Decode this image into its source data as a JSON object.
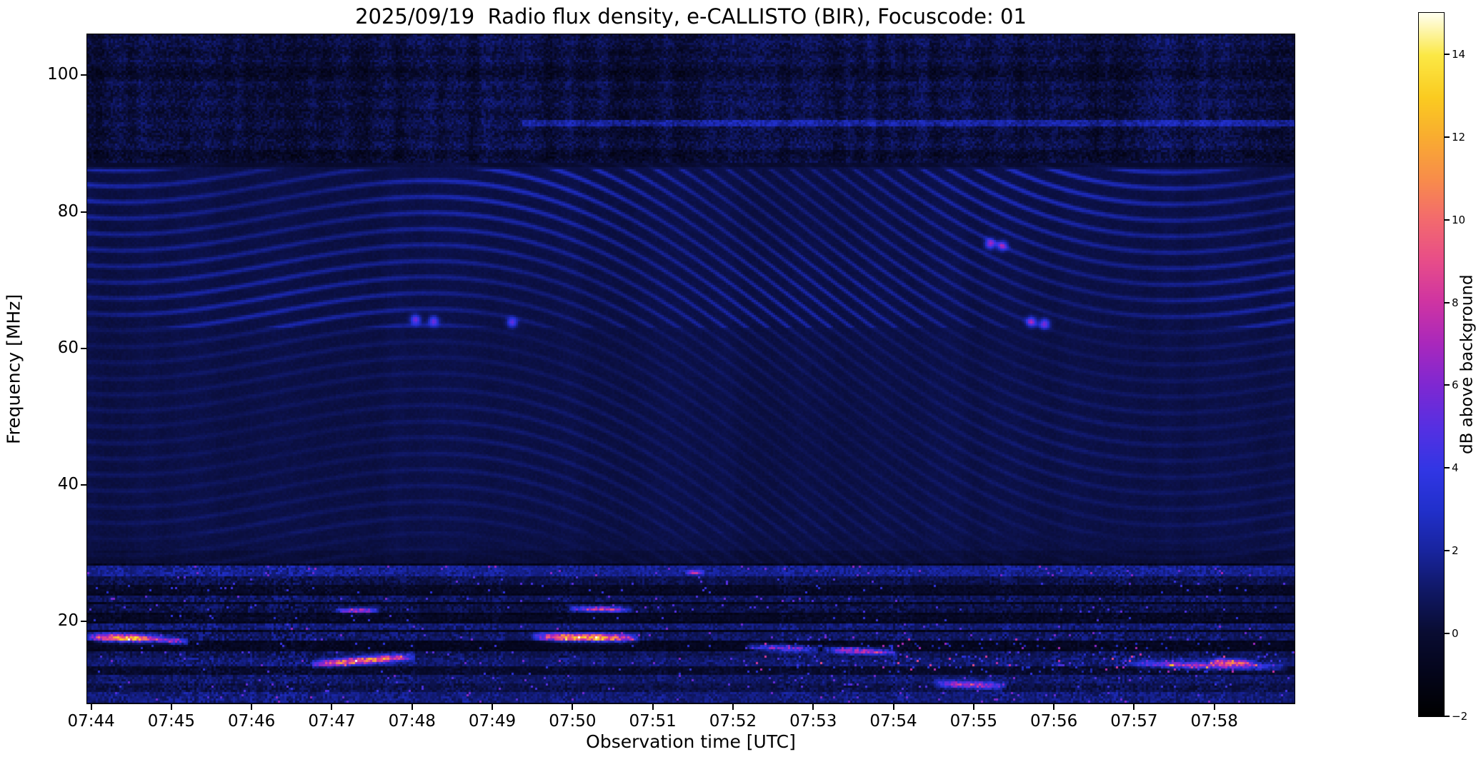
{
  "chart_data": {
    "type": "heatmap",
    "title": "2025/09/19  Radio flux density, e-CALLISTO (BIR), Focuscode: 01",
    "xlabel": "Observation time [UTC]",
    "ylabel": "Frequency [MHz]",
    "colorbar_label": "dB above background",
    "x_ticks": [
      {
        "m": 0,
        "label": "07:44"
      },
      {
        "m": 1,
        "label": "07:45"
      },
      {
        "m": 2,
        "label": "07:46"
      },
      {
        "m": 3,
        "label": "07:47"
      },
      {
        "m": 4,
        "label": "07:48"
      },
      {
        "m": 5,
        "label": "07:49"
      },
      {
        "m": 6,
        "label": "07:50"
      },
      {
        "m": 7,
        "label": "07:51"
      },
      {
        "m": 8,
        "label": "07:52"
      },
      {
        "m": 9,
        "label": "07:53"
      },
      {
        "m": 10,
        "label": "07:54"
      },
      {
        "m": 11,
        "label": "07:55"
      },
      {
        "m": 12,
        "label": "07:56"
      },
      {
        "m": 13,
        "label": "07:57"
      },
      {
        "m": 14,
        "label": "07:58"
      }
    ],
    "axis_time_span_seconds": 903,
    "y_ticks": [
      {
        "v": 100,
        "label": "100"
      },
      {
        "v": 80,
        "label": "80"
      },
      {
        "v": 60,
        "label": "60"
      },
      {
        "v": 40,
        "label": "40"
      },
      {
        "v": 20,
        "label": "20"
      }
    ],
    "freq_range": [
      8,
      106
    ],
    "value_range": [
      -2,
      15
    ],
    "colorbar_ticks": [
      {
        "v": -2,
        "label": "−2"
      },
      {
        "v": 0,
        "label": "0"
      },
      {
        "v": 2,
        "label": "2"
      },
      {
        "v": 4,
        "label": "4"
      },
      {
        "v": 6,
        "label": "6"
      },
      {
        "v": 8,
        "label": "8"
      },
      {
        "v": 10,
        "label": "10"
      },
      {
        "v": 12,
        "label": "12"
      },
      {
        "v": 14,
        "label": "14"
      }
    ],
    "colormap": {
      "name": "black-blue-violet-magenta-orange-yellow-white",
      "stops": [
        [
          0.0,
          "#000000"
        ],
        [
          0.06,
          "#04051a"
        ],
        [
          0.12,
          "#090c32"
        ],
        [
          0.18,
          "#101866"
        ],
        [
          0.235,
          "#18249e"
        ],
        [
          0.295,
          "#2130cc"
        ],
        [
          0.35,
          "#3136e4"
        ],
        [
          0.41,
          "#5530e2"
        ],
        [
          0.47,
          "#7e28d2"
        ],
        [
          0.53,
          "#a928bc"
        ],
        [
          0.59,
          "#cf34a2"
        ],
        [
          0.65,
          "#e84e88"
        ],
        [
          0.71,
          "#f36c6c"
        ],
        [
          0.765,
          "#f88d4a"
        ],
        [
          0.825,
          "#f9ad30"
        ],
        [
          0.88,
          "#facb20"
        ],
        [
          0.94,
          "#fbe845"
        ],
        [
          1.0,
          "#fffff0"
        ]
      ]
    },
    "regions": {
      "noisy_top_min_mhz": 87.3,
      "rfi_max_mhz": 28.6,
      "bright_line_mhz": 93.1,
      "bright_line_t_start": 0.36
    },
    "fringes": {
      "spacing_mhz": 2.35,
      "drift": 22,
      "wobble_amp": 5.0,
      "wobble_freq": 1.15,
      "wobble_phase": 0.07
    },
    "rfi_lanes": [
      {
        "f": 27.4,
        "w": 1.2,
        "b": 1.5,
        "s": 2.4
      },
      {
        "f": 26.0,
        "w": 1.0,
        "b": 0.3,
        "s": 2.0
      },
      {
        "f": 24.6,
        "w": 1.1,
        "b": -0.6,
        "s": 1.8
      },
      {
        "f": 23.3,
        "w": 1.0,
        "b": 0.6,
        "s": 2.2
      },
      {
        "f": 21.9,
        "w": 1.0,
        "b": 0.2,
        "s": 2.2
      },
      {
        "f": 20.5,
        "w": 1.0,
        "b": -0.6,
        "s": 1.8
      },
      {
        "f": 19.2,
        "w": 0.9,
        "b": 1.0,
        "s": 2.3
      },
      {
        "f": 17.8,
        "w": 1.0,
        "b": 0.7,
        "s": 2.4
      },
      {
        "f": 16.4,
        "w": 0.9,
        "b": -0.8,
        "s": 1.6
      },
      {
        "f": 15.2,
        "w": 0.9,
        "b": 0.5,
        "s": 2.2
      },
      {
        "f": 14.0,
        "w": 1.0,
        "b": 0.9,
        "s": 2.4
      },
      {
        "f": 12.8,
        "w": 0.9,
        "b": -0.4,
        "s": 1.9
      },
      {
        "f": 11.6,
        "w": 0.9,
        "b": 0.8,
        "s": 2.2
      },
      {
        "f": 10.3,
        "w": 1.0,
        "b": 0.3,
        "s": 2.0
      },
      {
        "f": 9.0,
        "w": 1.3,
        "b": 1.1,
        "s": 2.3
      }
    ],
    "bursts": [
      {
        "t0": 0.0,
        "t1": 0.062,
        "f0": 17.7,
        "f1": 17.4,
        "sig": 0.55,
        "p": 14.0
      },
      {
        "t0": 0.055,
        "t1": 0.085,
        "f0": 17.3,
        "f1": 17.0,
        "sig": 0.4,
        "p": 8.0
      },
      {
        "t0": 0.185,
        "t1": 0.272,
        "f0": 13.7,
        "f1": 14.9,
        "sig": 0.5,
        "p": 12.5
      },
      {
        "t0": 0.205,
        "t1": 0.242,
        "f0": 21.6,
        "f1": 21.6,
        "sig": 0.35,
        "p": 8.5
      },
      {
        "t0": 0.368,
        "t1": 0.458,
        "f0": 17.8,
        "f1": 17.5,
        "sig": 0.55,
        "p": 14.5
      },
      {
        "t0": 0.398,
        "t1": 0.452,
        "f0": 21.9,
        "f1": 21.7,
        "sig": 0.38,
        "p": 9.5
      },
      {
        "t0": 0.495,
        "t1": 0.512,
        "f0": 27.2,
        "f1": 27.2,
        "sig": 0.3,
        "p": 7.5
      },
      {
        "t0": 0.545,
        "t1": 0.608,
        "f0": 16.3,
        "f1": 15.9,
        "sig": 0.45,
        "p": 8.0
      },
      {
        "t0": 0.608,
        "t1": 0.672,
        "f0": 15.9,
        "f1": 15.5,
        "sig": 0.45,
        "p": 8.5
      },
      {
        "t0": 0.7,
        "t1": 0.762,
        "f0": 10.9,
        "f1": 10.5,
        "sig": 0.5,
        "p": 8.5
      },
      {
        "t0": 0.862,
        "t1": 0.995,
        "f0": 13.8,
        "f1": 13.2,
        "sig": 0.5,
        "p": 7.0
      },
      {
        "t0": 0.928,
        "t1": 0.968,
        "f0": 14.2,
        "f1": 13.9,
        "sig": 0.4,
        "p": 9.0
      }
    ],
    "dots": [
      {
        "t": 0.272,
        "f": 64.2,
        "p": 5.5
      },
      {
        "t": 0.287,
        "f": 64.0,
        "p": 5.0
      },
      {
        "t": 0.352,
        "f": 63.8,
        "p": 5.0
      },
      {
        "t": 0.748,
        "f": 75.3,
        "p": 6.0
      },
      {
        "t": 0.758,
        "f": 75.0,
        "p": 5.5
      },
      {
        "t": 0.782,
        "f": 63.9,
        "p": 6.0
      },
      {
        "t": 0.793,
        "f": 63.6,
        "p": 5.5
      }
    ]
  }
}
